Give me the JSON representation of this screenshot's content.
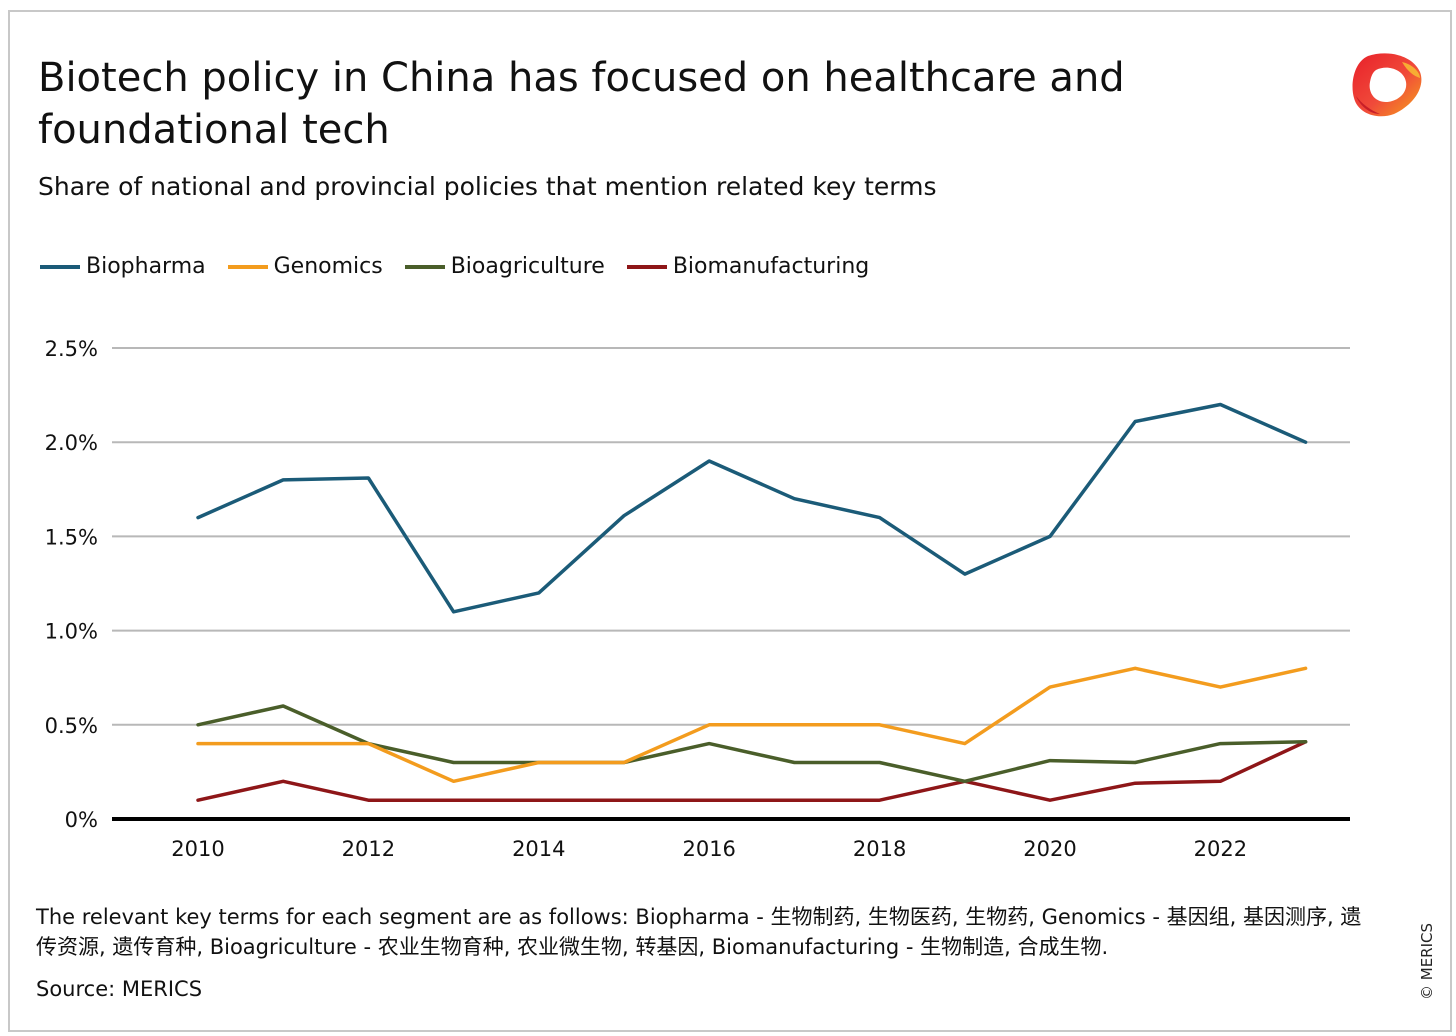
{
  "header": {
    "title": "Biotech policy in China has focused on healthcare and foundational tech",
    "subtitle": "Share of national and provincial policies that mention related key terms",
    "logo_icon": "merics-logo-icon"
  },
  "chart_data": {
    "type": "line",
    "x": [
      2010,
      2011,
      2012,
      2013,
      2014,
      2015,
      2016,
      2017,
      2018,
      2019,
      2020,
      2021,
      2022,
      2023
    ],
    "x_tick_labels": [
      "2010",
      "2012",
      "2014",
      "2016",
      "2018",
      "2020",
      "2022"
    ],
    "y_tick_labels": [
      "0%",
      "0.5%",
      "1.0%",
      "1.5%",
      "2.0%",
      "2.5%"
    ],
    "ylim": [
      0,
      2.5
    ],
    "y_unit": "%",
    "grid": "horizontal",
    "legend_position": "top-left",
    "series": [
      {
        "name": "Biopharma",
        "color": "#1b5b78",
        "values": [
          1.6,
          1.8,
          1.81,
          1.1,
          1.2,
          1.61,
          1.9,
          1.7,
          1.6,
          1.3,
          1.5,
          2.11,
          2.2,
          2.0
        ]
      },
      {
        "name": "Genomics",
        "color": "#f39c1e",
        "values": [
          0.4,
          0.4,
          0.4,
          0.2,
          0.3,
          0.3,
          0.5,
          0.5,
          0.5,
          0.4,
          0.7,
          0.8,
          0.7,
          0.8
        ]
      },
      {
        "name": "Bioagriculture",
        "color": "#4a5e2a",
        "values": [
          0.5,
          0.6,
          0.4,
          0.3,
          0.3,
          0.3,
          0.4,
          0.3,
          0.3,
          0.2,
          0.31,
          0.3,
          0.4,
          0.41
        ]
      },
      {
        "name": "Biomanufacturing",
        "color": "#8e1618",
        "values": [
          0.1,
          0.2,
          0.1,
          0.1,
          0.1,
          0.1,
          0.1,
          0.1,
          0.1,
          0.2,
          0.1,
          0.19,
          0.2,
          0.41
        ]
      }
    ]
  },
  "footer": {
    "note": "The relevant key terms for each segment are as follows: Biopharma - 生物制药, 生物医药, 生物药, Genomics - 基因组, 基因测序, 遗传资源, 遗传育种, Bioagriculture - 农业生物育种, 农业微生物, 转基因, Biomanufacturing - 生物制造, 合成生物.",
    "source": "Source: MERICS",
    "copyright": "© MERICS"
  }
}
